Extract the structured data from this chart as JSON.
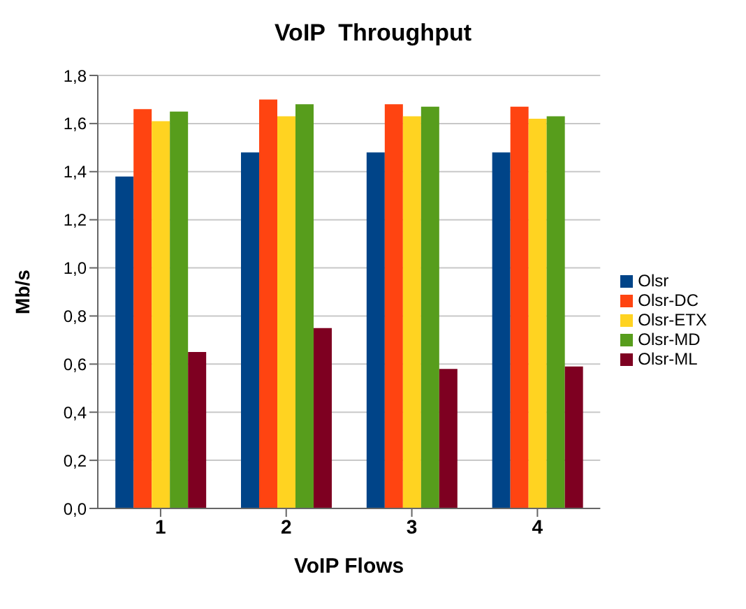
{
  "chart_data": {
    "type": "bar",
    "title": "VoIP  Throughput",
    "xlabel": "VoIP Flows",
    "ylabel": "Mb/s",
    "categories": [
      "1",
      "2",
      "3",
      "4"
    ],
    "series": [
      {
        "name": "Olsr",
        "color": "#004488",
        "values": [
          1.38,
          1.48,
          1.48,
          1.48
        ]
      },
      {
        "name": "Olsr-DC",
        "color": "#ff4411",
        "values": [
          1.66,
          1.7,
          1.68,
          1.67
        ]
      },
      {
        "name": "Olsr-ETX",
        "color": "#ffd321",
        "values": [
          1.61,
          1.63,
          1.63,
          1.62
        ]
      },
      {
        "name": "Olsr-MD",
        "color": "#579d1c",
        "values": [
          1.65,
          1.68,
          1.67,
          1.63
        ]
      },
      {
        "name": "Olsr-ML",
        "color": "#7e0021",
        "values": [
          0.65,
          0.75,
          0.58,
          0.59
        ]
      }
    ],
    "ylim": [
      0,
      1.8
    ],
    "yticks": [
      {
        "value": 0,
        "label": "0,0"
      },
      {
        "value": 0.2,
        "label": "0,2"
      },
      {
        "value": 0.4,
        "label": "0,4"
      },
      {
        "value": 0.6,
        "label": "0,6"
      },
      {
        "value": 0.8,
        "label": "0,8"
      },
      {
        "value": 1,
        "label": "1,0"
      },
      {
        "value": 1.2,
        "label": "1,2"
      },
      {
        "value": 1.4,
        "label": "1,4"
      },
      {
        "value": 1.6,
        "label": "1,6"
      },
      {
        "value": 1.8,
        "label": "1,8"
      }
    ],
    "grid": "y",
    "legend": "right"
  }
}
